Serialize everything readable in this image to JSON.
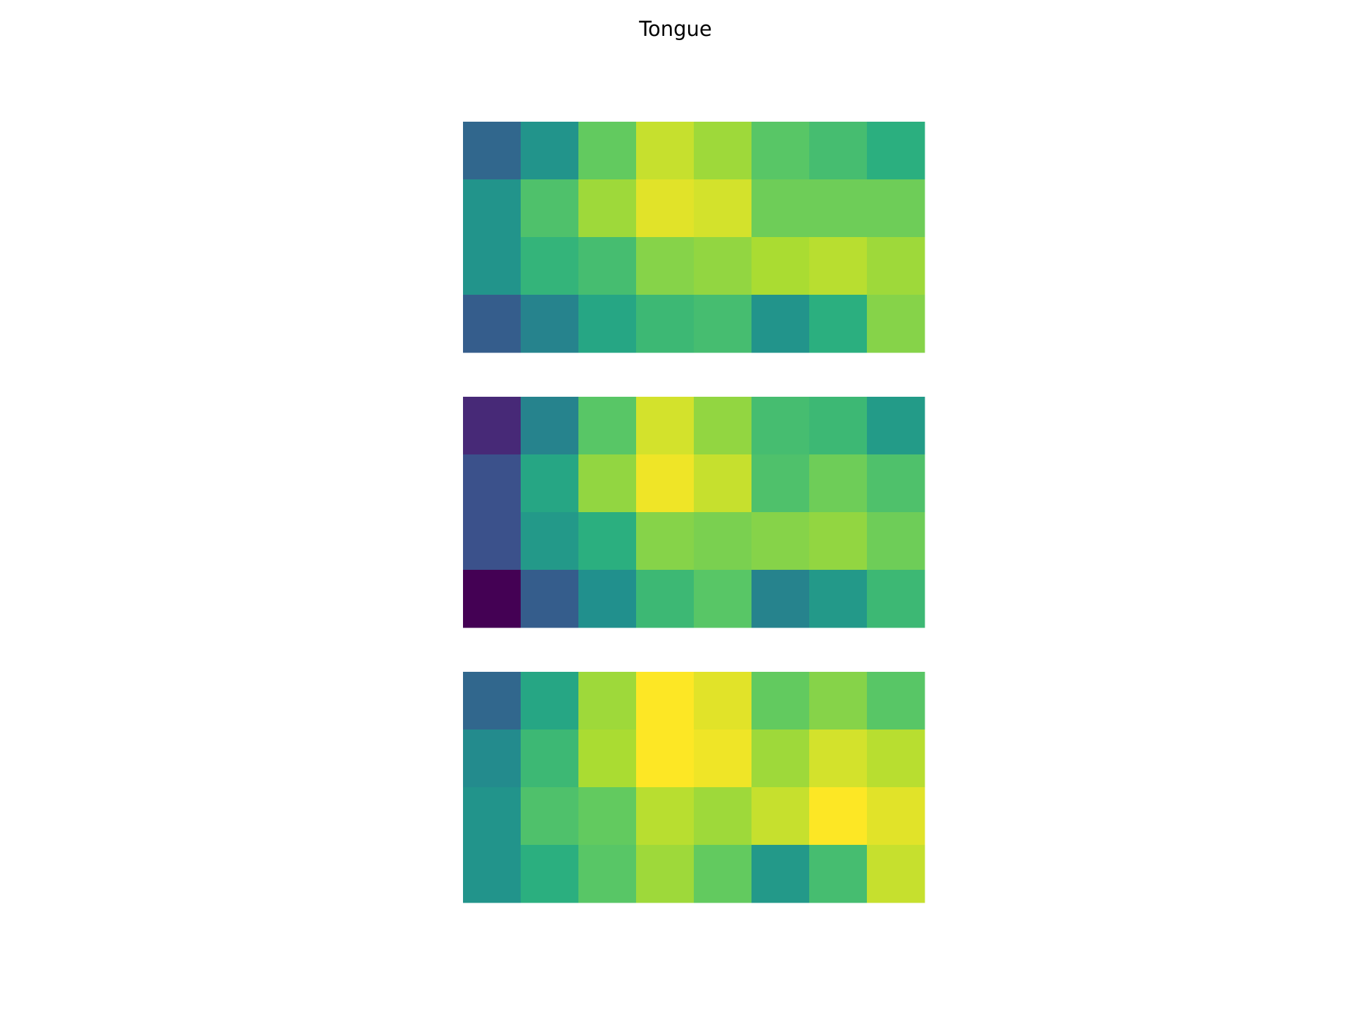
{
  "chart_data": {
    "type": "heatmap",
    "title": "Tongue",
    "colormap": "viridis",
    "color_range": [
      0,
      1
    ],
    "panels": [
      {
        "rows": [
          [
            0.34,
            0.52,
            0.76,
            0.92,
            0.86,
            0.74,
            0.7,
            0.64
          ],
          [
            0.52,
            0.72,
            0.86,
            0.96,
            0.94,
            0.78,
            0.78,
            0.78
          ],
          [
            0.52,
            0.66,
            0.7,
            0.82,
            0.84,
            0.88,
            0.9,
            0.86
          ],
          [
            0.3,
            0.45,
            0.6,
            0.68,
            0.7,
            0.52,
            0.64,
            0.82
          ]
        ]
      },
      {
        "rows": [
          [
            0.12,
            0.45,
            0.74,
            0.94,
            0.84,
            0.7,
            0.68,
            0.55
          ],
          [
            0.25,
            0.6,
            0.84,
            0.98,
            0.92,
            0.72,
            0.78,
            0.72
          ],
          [
            0.25,
            0.54,
            0.64,
            0.82,
            0.8,
            0.82,
            0.84,
            0.78
          ],
          [
            0.0,
            0.3,
            0.5,
            0.68,
            0.74,
            0.45,
            0.54,
            0.68
          ]
        ]
      },
      {
        "rows": [
          [
            0.34,
            0.6,
            0.86,
            1.0,
            0.96,
            0.76,
            0.82,
            0.74
          ],
          [
            0.48,
            0.68,
            0.88,
            1.0,
            0.98,
            0.86,
            0.94,
            0.9
          ],
          [
            0.52,
            0.72,
            0.76,
            0.9,
            0.86,
            0.92,
            1.0,
            0.96
          ],
          [
            0.52,
            0.64,
            0.74,
            0.86,
            0.76,
            0.54,
            0.7,
            0.92
          ]
        ]
      }
    ]
  }
}
